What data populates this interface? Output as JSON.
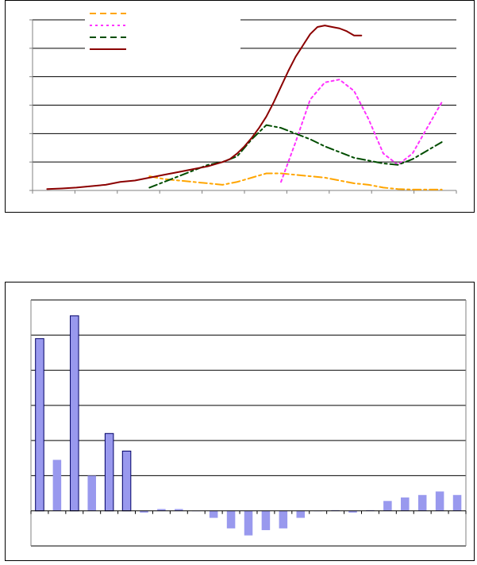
{
  "chart_data": [
    {
      "type": "line",
      "title": "",
      "xlabel": "",
      "ylabel": "",
      "ylim": [
        0,
        6
      ],
      "xlim": [
        0,
        29
      ],
      "grid": true,
      "legend_position": "top-left",
      "series": [
        {
          "color": "#ffa500",
          "dash": "dash-dot",
          "x": [
            8,
            9,
            10,
            11,
            12,
            13,
            14,
            15,
            16,
            17,
            18,
            19,
            20,
            21,
            22,
            23,
            24,
            25,
            26,
            27,
            28
          ],
          "values": [
            0.5,
            0.4,
            0.35,
            0.3,
            0.25,
            0.2,
            0.3,
            0.45,
            0.6,
            0.6,
            0.55,
            0.5,
            0.45,
            0.35,
            0.25,
            0.2,
            0.1,
            0.05,
            0.03,
            0.03,
            0.03
          ]
        },
        {
          "color": "#ff33ff",
          "dash": "dotted",
          "x": [
            17,
            18,
            19,
            20,
            21,
            22,
            23,
            24,
            25,
            26,
            27,
            28
          ],
          "values": [
            0.3,
            1.7,
            3.2,
            3.8,
            3.9,
            3.5,
            2.5,
            1.3,
            0.9,
            1.3,
            2.2,
            3.1
          ]
        },
        {
          "color": "#004d00",
          "dash": "dash-dot",
          "x": [
            8,
            9,
            10,
            11,
            12,
            13,
            14,
            15,
            16,
            17,
            18,
            19,
            20,
            21,
            22,
            23,
            24,
            25,
            26,
            27,
            28
          ],
          "values": [
            0.1,
            0.3,
            0.5,
            0.7,
            0.9,
            1.0,
            1.2,
            1.8,
            2.3,
            2.2,
            2.0,
            1.8,
            1.55,
            1.35,
            1.15,
            1.05,
            0.95,
            0.9,
            1.1,
            1.4,
            1.7
          ]
        },
        {
          "color": "#8b0000",
          "dash": "solid",
          "x": [
            1,
            2,
            3,
            4,
            5,
            6,
            7,
            8,
            9,
            10,
            11,
            12,
            13,
            13.5,
            14,
            14.5,
            15,
            15.5,
            16,
            16.5,
            17,
            17.5,
            18,
            18.5,
            19,
            19.5,
            20,
            20.5,
            21,
            21.5,
            22,
            22.5
          ],
          "values": [
            0.05,
            0.07,
            0.1,
            0.15,
            0.2,
            0.3,
            0.35,
            0.45,
            0.55,
            0.65,
            0.75,
            0.85,
            1.0,
            1.1,
            1.3,
            1.55,
            1.85,
            2.2,
            2.6,
            3.1,
            3.65,
            4.2,
            4.7,
            5.1,
            5.5,
            5.75,
            5.8,
            5.75,
            5.7,
            5.6,
            5.45,
            5.45
          ]
        }
      ]
    },
    {
      "type": "bar",
      "title": "",
      "xlabel": "",
      "ylabel": "",
      "ylim": [
        -1,
        6
      ],
      "grid": true,
      "bar_color": "#9999ee",
      "categories": [
        "",
        "",
        "",
        "",
        "",
        "",
        "",
        "",
        "",
        "",
        "",
        "",
        "",
        "",
        "",
        "",
        "",
        "",
        "",
        "",
        "",
        "",
        "",
        "",
        ""
      ],
      "values": [
        4.9,
        1.45,
        5.55,
        1.0,
        2.2,
        1.7,
        -0.05,
        0.05,
        0.05,
        0.0,
        -0.2,
        -0.5,
        -0.7,
        -0.55,
        -0.5,
        -0.2,
        0.0,
        0.02,
        -0.05,
        0.02,
        0.28,
        0.38,
        0.45,
        0.55,
        0.45
      ]
    }
  ]
}
